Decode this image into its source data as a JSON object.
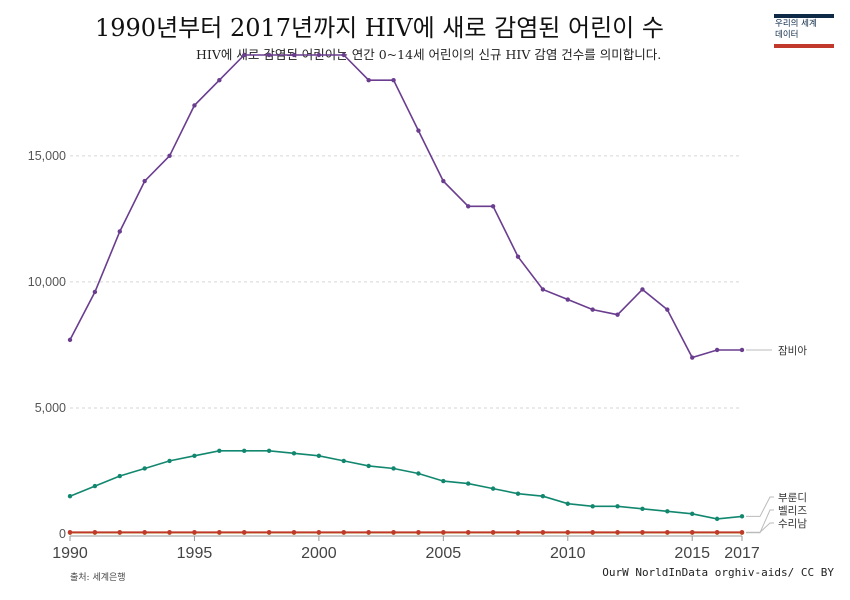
{
  "header": {
    "title": "1990년부터 2017년까지 HIV에 새로 감염된 어린이 수",
    "subtitle": "HIV에 새로 감염된 어린이는 연간 0~14세 어린이의 신규 HIV 감염 건수를 의미합니다."
  },
  "logo": {
    "line1": "우리의 세계",
    "line2": "데이터",
    "top_color": "#0e2a47",
    "bottom_color": "#c0392b"
  },
  "footer": {
    "source": "출처: 세계은행",
    "credit": "OurW  NorldInData  orghiv-aids/  CC  BY"
  },
  "chart_data": {
    "type": "line",
    "x": [
      1990,
      1991,
      1992,
      1993,
      1994,
      1995,
      1996,
      1997,
      1998,
      1999,
      2000,
      2001,
      2002,
      2003,
      2004,
      2005,
      2006,
      2007,
      2008,
      2009,
      2010,
      2011,
      2012,
      2013,
      2014,
      2015,
      2016,
      2017
    ],
    "xticks": [
      1990,
      1995,
      2000,
      2005,
      2010,
      2015,
      2017
    ],
    "xtick_labels": [
      "1990",
      "1995",
      "2000",
      "2005",
      "2010",
      "2015",
      "2017"
    ],
    "yticks": [
      0,
      5000,
      10000,
      15000
    ],
    "ytick_labels": [
      "0",
      "5,000",
      "10,000",
      "15,000"
    ],
    "ylim": [
      0,
      19000
    ],
    "xlim": [
      1990,
      2017
    ],
    "grid": "horizontal dashed",
    "legend": "inline labels at right end of lines",
    "series": [
      {
        "name": "잠비아",
        "color": "#6a3d8f",
        "values": [
          7700,
          9600,
          12000,
          14000,
          15000,
          17000,
          18000,
          19000,
          19000,
          19000,
          19000,
          19000,
          18000,
          18000,
          16000,
          14000,
          13000,
          13000,
          11000,
          9700,
          9300,
          8900,
          8700,
          9700,
          8900,
          7000,
          7300,
          7300
        ]
      },
      {
        "name": "부룬디",
        "color": "#12876f",
        "values": [
          1500,
          1900,
          2300,
          2600,
          2900,
          3100,
          3300,
          3300,
          3300,
          3200,
          3100,
          2900,
          2700,
          2600,
          2400,
          2100,
          2000,
          1800,
          1600,
          1500,
          1200,
          1100,
          1100,
          1000,
          900,
          800,
          600,
          700
        ]
      },
      {
        "name": "벨리즈",
        "color": "#b5651d",
        "values": [
          50,
          50,
          50,
          50,
          50,
          50,
          50,
          50,
          50,
          50,
          50,
          50,
          50,
          50,
          50,
          50,
          50,
          50,
          50,
          50,
          50,
          50,
          50,
          50,
          50,
          50,
          50,
          50
        ]
      },
      {
        "name": "수리남",
        "color": "#c0392b",
        "values": [
          70,
          70,
          70,
          70,
          70,
          70,
          70,
          70,
          70,
          70,
          70,
          70,
          70,
          70,
          70,
          70,
          70,
          70,
          70,
          70,
          70,
          70,
          70,
          70,
          70,
          70,
          70,
          70
        ]
      }
    ]
  }
}
